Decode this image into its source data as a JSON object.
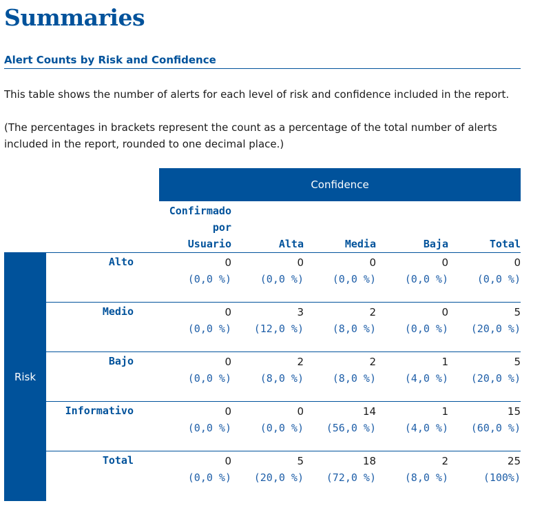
{
  "page": {
    "title": "Summaries",
    "section_heading": "Alert Counts by Risk and Confidence",
    "paragraph_1": "This table shows the number of alerts for each level of risk and confidence included in the report.",
    "paragraph_2": "(The percentages in brackets represent the count as a percentage of the total number of alerts included in the report, rounded to one decimal place.)"
  },
  "table": {
    "confidence_header": "Confidence",
    "risk_header": "Risk",
    "columns": [
      {
        "label_lines": [
          "Confirmado",
          "por",
          "Usuario"
        ]
      },
      {
        "label_lines": [
          "Alta"
        ]
      },
      {
        "label_lines": [
          "Media"
        ]
      },
      {
        "label_lines": [
          "Baja"
        ]
      },
      {
        "label_lines": [
          "Total"
        ]
      }
    ],
    "rows": [
      {
        "label": "Alto",
        "cells": [
          {
            "count": "0",
            "pct": "(0,0 %)"
          },
          {
            "count": "0",
            "pct": "(0,0 %)"
          },
          {
            "count": "0",
            "pct": "(0,0 %)"
          },
          {
            "count": "0",
            "pct": "(0,0 %)"
          },
          {
            "count": "0",
            "pct": "(0,0 %)"
          }
        ]
      },
      {
        "label": "Medio",
        "cells": [
          {
            "count": "0",
            "pct": "(0,0 %)"
          },
          {
            "count": "3",
            "pct": "(12,0 %)"
          },
          {
            "count": "2",
            "pct": "(8,0 %)"
          },
          {
            "count": "0",
            "pct": "(0,0 %)"
          },
          {
            "count": "5",
            "pct": "(20,0 %)"
          }
        ]
      },
      {
        "label": "Bajo",
        "cells": [
          {
            "count": "0",
            "pct": "(0,0 %)"
          },
          {
            "count": "2",
            "pct": "(8,0 %)"
          },
          {
            "count": "2",
            "pct": "(8,0 %)"
          },
          {
            "count": "1",
            "pct": "(4,0 %)"
          },
          {
            "count": "5",
            "pct": "(20,0 %)"
          }
        ]
      },
      {
        "label": "Informativo",
        "cells": [
          {
            "count": "0",
            "pct": "(0,0 %)"
          },
          {
            "count": "0",
            "pct": "(0,0 %)"
          },
          {
            "count": "14",
            "pct": "(56,0 %)"
          },
          {
            "count": "1",
            "pct": "(4,0 %)"
          },
          {
            "count": "15",
            "pct": "(60,0 %)"
          }
        ]
      },
      {
        "label": "Total",
        "cells": [
          {
            "count": "0",
            "pct": "(0,0 %)"
          },
          {
            "count": "5",
            "pct": "(20,0 %)"
          },
          {
            "count": "18",
            "pct": "(72,0 %)"
          },
          {
            "count": "2",
            "pct": "(8,0 %)"
          },
          {
            "count": "25",
            "pct": "(100%)"
          }
        ]
      }
    ]
  },
  "colors": {
    "accent": "#00529b",
    "text": "#1a1a1a",
    "percent_text": "#1f5fa8",
    "header_text": "#ffffff"
  }
}
